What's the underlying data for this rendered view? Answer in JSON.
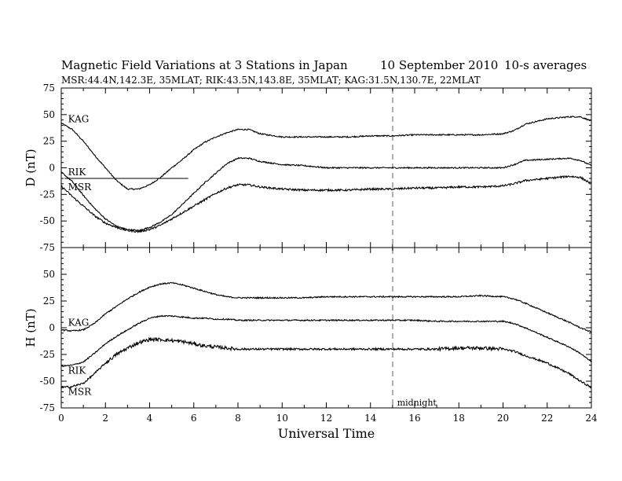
{
  "header": {
    "title": "Magnetic Field Variations at 3 Stations in Japan",
    "date": "10 September 2010",
    "averaging": "10-s averages",
    "stations_line": "MSR:44.4N,142.3E, 35MLAT;  RIK:43.5N,143.8E, 35MLAT;  KAG:31.5N,130.7E, 22MLAT"
  },
  "chart_data": [
    {
      "type": "line",
      "panel": "top",
      "ylabel": "D (nT)",
      "ylim": [
        -75,
        75
      ],
      "yticks": [
        -75,
        -50,
        -25,
        0,
        25,
        50,
        75
      ],
      "xlim": [
        0,
        24
      ],
      "grid": false,
      "series": [
        {
          "name": "KAG",
          "x": [
            0,
            0.5,
            1,
            1.5,
            2,
            2.5,
            3,
            3.5,
            4,
            4.5,
            5,
            5.5,
            6,
            6.5,
            7,
            7.5,
            8,
            8.5,
            9,
            10,
            11,
            12,
            13,
            14,
            15,
            16,
            17,
            18,
            19,
            20,
            20.5,
            21,
            22,
            23,
            23.5,
            24
          ],
          "y": [
            42,
            36,
            25,
            12,
            0,
            -12,
            -20,
            -20,
            -16,
            -9,
            0,
            8,
            17,
            24,
            29,
            33,
            36,
            36,
            32,
            29,
            29,
            29,
            29,
            30,
            30,
            31,
            31,
            31,
            31,
            32,
            35,
            41,
            46,
            48,
            48,
            44
          ]
        },
        {
          "name": "RIK",
          "x": [
            0,
            0.5,
            1,
            1.5,
            2,
            2.5,
            3,
            3.5,
            4,
            4.5,
            5,
            5.5,
            6,
            6.5,
            7,
            7.5,
            8,
            8.5,
            9,
            10,
            11,
            12,
            13,
            14,
            15,
            16,
            17,
            18,
            19,
            20,
            20.5,
            21,
            22,
            23,
            23.5,
            24
          ],
          "y": [
            -4,
            -13,
            -26,
            -38,
            -48,
            -55,
            -58,
            -59,
            -56,
            -51,
            -44,
            -34,
            -24,
            -14,
            -5,
            4,
            9,
            9,
            6,
            3,
            2,
            0,
            0,
            0,
            0,
            0,
            0,
            0,
            0,
            0,
            3,
            7,
            8,
            9,
            7,
            2
          ]
        },
        {
          "name": "MSR",
          "x": [
            0,
            0.5,
            1,
            1.5,
            2,
            2.5,
            3,
            3.5,
            4,
            4.5,
            5,
            5.5,
            6,
            6.5,
            7,
            7.5,
            8,
            8.5,
            9,
            10,
            11,
            12,
            13,
            14,
            15,
            16,
            17,
            18,
            19,
            20,
            20.5,
            21,
            22,
            23,
            23.5,
            24
          ],
          "y": [
            -17,
            -27,
            -36,
            -45,
            -52,
            -56,
            -59,
            -60,
            -58,
            -54,
            -48,
            -42,
            -36,
            -30,
            -24,
            -19,
            -16,
            -16,
            -18,
            -20,
            -21,
            -21,
            -21,
            -20,
            -20,
            -19,
            -19,
            -18,
            -18,
            -17,
            -15,
            -12,
            -10,
            -8,
            -9,
            -15
          ]
        },
        {
          "name": "",
          "x": [
            0.15,
            5.75
          ],
          "y": [
            -10,
            -10
          ]
        }
      ],
      "labels": [
        {
          "text": "KAG",
          "x": 0.2,
          "y": 43
        },
        {
          "text": "RIK",
          "x": 0.2,
          "y": -7
        },
        {
          "text": "MSR",
          "x": 0.2,
          "y": -21
        }
      ]
    },
    {
      "type": "line",
      "panel": "bottom",
      "ylabel": "H (nT)",
      "xlabel": "Universal Time",
      "ylim": [
        -75,
        75
      ],
      "yticks": [
        -75,
        -50,
        -25,
        0,
        25,
        50
      ],
      "xlim": [
        0,
        24
      ],
      "xticks": [
        0,
        2,
        4,
        6,
        8,
        10,
        12,
        14,
        16,
        18,
        20,
        22,
        24
      ],
      "grid": false,
      "series": [
        {
          "name": "KAG",
          "x": [
            0,
            0.5,
            1,
            1.5,
            2,
            2.5,
            3,
            3.5,
            4,
            4.5,
            5,
            5.5,
            6,
            6.5,
            7,
            7.5,
            8,
            9,
            10,
            11,
            12,
            13,
            14,
            15,
            16,
            17,
            18,
            19,
            20,
            20.5,
            21,
            22,
            23,
            23.5,
            24
          ],
          "y": [
            -2,
            -3,
            -2,
            4,
            13,
            20,
            27,
            33,
            38,
            41,
            42,
            40,
            37,
            34,
            31,
            29,
            28,
            28,
            28,
            28,
            29,
            29,
            29,
            29,
            29,
            29,
            29,
            30,
            29,
            27,
            23,
            14,
            5,
            0,
            -4
          ]
        },
        {
          "name": "RIK",
          "x": [
            0,
            0.5,
            1,
            1.5,
            2,
            2.5,
            3,
            3.5,
            4,
            4.5,
            5,
            5.5,
            6,
            6.5,
            7,
            7.5,
            8,
            9,
            10,
            11,
            12,
            13,
            14,
            15,
            16,
            17,
            18,
            19,
            20,
            20.5,
            21,
            22,
            23,
            23.5,
            24
          ],
          "y": [
            -36,
            -35,
            -32,
            -24,
            -15,
            -8,
            -2,
            4,
            9,
            11,
            11,
            10,
            9,
            9,
            8,
            8,
            7,
            7,
            7,
            7,
            7,
            7,
            7,
            7,
            7,
            6,
            6,
            6,
            6,
            4,
            0,
            -9,
            -18,
            -24,
            -32
          ]
        },
        {
          "name": "MSR",
          "x": [
            0,
            0.5,
            1,
            1.5,
            2,
            2.5,
            3,
            3.5,
            4,
            4.5,
            5,
            5.5,
            6,
            6.5,
            7,
            7.5,
            8,
            9,
            10,
            11,
            12,
            13,
            14,
            15,
            16,
            17,
            18,
            19,
            20,
            20.5,
            21,
            22,
            23,
            23.5,
            24
          ],
          "y": [
            -56,
            -55,
            -52,
            -43,
            -33,
            -25,
            -19,
            -14,
            -11,
            -11,
            -12,
            -13,
            -15,
            -17,
            -18,
            -19,
            -20,
            -20,
            -20,
            -20,
            -20,
            -20,
            -20,
            -20,
            -20,
            -20,
            -19,
            -19,
            -20,
            -22,
            -26,
            -33,
            -43,
            -50,
            -56
          ]
        }
      ],
      "labels": [
        {
          "text": "KAG",
          "x": 0.2,
          "y": 2
        },
        {
          "text": "RIK",
          "x": 0.2,
          "y": -43
        },
        {
          "text": "MSR",
          "x": 0.2,
          "y": -63
        }
      ],
      "annotations": [
        {
          "text": "midnight",
          "x": 15.1,
          "y": -70
        }
      ]
    }
  ],
  "reference_line": {
    "x": 15,
    "style": "dashed",
    "color": "#9a9a9a"
  },
  "colors": {
    "series": "#000000",
    "axis": "#000000",
    "reference": "#9a9a9a"
  }
}
